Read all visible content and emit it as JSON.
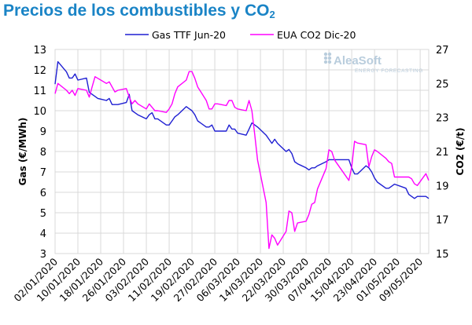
{
  "page": {
    "title": "Precios de los combustibles y CO",
    "title_sub": "2"
  },
  "watermark": {
    "brand": "AleaSoft",
    "tagline": "ENERGY FORECASTING"
  },
  "chart_data": {
    "type": "line",
    "title": "Precios de los combustibles y CO2",
    "x": [
      "02/01/2020",
      "03/01/2020",
      "06/01/2020",
      "07/01/2020",
      "08/01/2020",
      "09/01/2020",
      "10/01/2020",
      "13/01/2020",
      "14/01/2020",
      "15/01/2020",
      "16/01/2020",
      "17/01/2020",
      "20/01/2020",
      "21/01/2020",
      "22/01/2020",
      "23/01/2020",
      "24/01/2020",
      "27/01/2020",
      "28/01/2020",
      "29/01/2020",
      "30/01/2020",
      "31/01/2020",
      "03/02/2020",
      "04/02/2020",
      "05/02/2020",
      "06/02/2020",
      "07/02/2020",
      "10/02/2020",
      "11/02/2020",
      "12/02/2020",
      "13/02/2020",
      "14/02/2020",
      "17/02/2020",
      "18/02/2020",
      "19/02/2020",
      "20/02/2020",
      "21/02/2020",
      "24/02/2020",
      "25/02/2020",
      "26/02/2020",
      "27/02/2020",
      "28/02/2020",
      "02/03/2020",
      "03/03/2020",
      "04/03/2020",
      "05/03/2020",
      "06/03/2020",
      "09/03/2020",
      "10/03/2020",
      "11/03/2020",
      "12/03/2020",
      "13/03/2020",
      "16/03/2020",
      "17/03/2020",
      "18/03/2020",
      "19/03/2020",
      "20/03/2020",
      "23/03/2020",
      "24/03/2020",
      "25/03/2020",
      "26/03/2020",
      "27/03/2020",
      "30/03/2020",
      "31/03/2020",
      "01/04/2020",
      "02/04/2020",
      "03/04/2020",
      "06/04/2020",
      "07/04/2020",
      "08/04/2020",
      "09/04/2020",
      "14/04/2020",
      "15/04/2020",
      "16/04/2020",
      "17/04/2020",
      "20/04/2020",
      "21/04/2020",
      "22/04/2020",
      "23/04/2020",
      "24/04/2020",
      "27/04/2020",
      "28/04/2020",
      "29/04/2020",
      "30/04/2020",
      "04/05/2020",
      "05/05/2020",
      "06/05/2020",
      "07/05/2020",
      "08/05/2020",
      "11/05/2020",
      "12/05/2020"
    ],
    "x_start": "2020-01-02",
    "x_end": "2020-05-12",
    "x_ticks": [
      "02/01/2020",
      "10/01/2020",
      "18/01/2020",
      "26/01/2020",
      "03/02/2020",
      "11/02/2020",
      "19/02/2020",
      "27/02/2020",
      "06/03/2020",
      "14/03/2020",
      "22/03/2020",
      "30/03/2020",
      "07/04/2020",
      "15/04/2020",
      "23/04/2020",
      "01/05/2020",
      "09/05/2020"
    ],
    "series": [
      {
        "name": "Gas TTF Jun-20",
        "axis": "left",
        "color": "#1f1fd2",
        "values": [
          11.3,
          12.4,
          11.9,
          11.6,
          11.6,
          11.8,
          11.5,
          11.6,
          10.9,
          10.8,
          10.7,
          10.6,
          10.5,
          10.6,
          10.3,
          10.3,
          10.3,
          10.4,
          10.8,
          10.0,
          9.9,
          9.8,
          9.6,
          9.8,
          9.9,
          9.6,
          9.6,
          9.3,
          9.3,
          9.5,
          9.7,
          9.8,
          10.2,
          10.1,
          10.0,
          9.8,
          9.5,
          9.2,
          9.2,
          9.3,
          9.0,
          9.0,
          9.0,
          9.3,
          9.1,
          9.1,
          8.9,
          8.8,
          9.1,
          9.4,
          9.3,
          9.2,
          8.8,
          8.6,
          8.4,
          8.6,
          8.4,
          8.0,
          8.1,
          7.9,
          7.5,
          7.4,
          7.2,
          7.1,
          7.2,
          7.2,
          7.3,
          7.5,
          7.6,
          7.6,
          7.6,
          7.6,
          7.2,
          6.9,
          6.9,
          7.3,
          7.2,
          7.0,
          6.7,
          6.5,
          6.2,
          6.2,
          6.3,
          6.4,
          6.2,
          5.9,
          5.8,
          5.7,
          5.8,
          5.8,
          5.7
        ]
      },
      {
        "name": "EUA CO2 Dic-20",
        "axis": "right",
        "color": "#ff00ff",
        "values": [
          24.4,
          25.0,
          24.6,
          24.4,
          24.6,
          24.3,
          24.7,
          24.6,
          24.2,
          24.8,
          25.4,
          25.3,
          25.0,
          25.1,
          24.8,
          24.5,
          24.6,
          24.7,
          24.2,
          23.8,
          24.0,
          23.8,
          23.5,
          23.8,
          23.6,
          23.4,
          23.4,
          23.3,
          23.5,
          23.8,
          24.4,
          24.8,
          25.2,
          25.7,
          25.7,
          25.3,
          24.8,
          24.0,
          23.5,
          23.5,
          23.8,
          23.8,
          23.7,
          24.0,
          24.0,
          23.6,
          23.5,
          23.4,
          24.0,
          23.4,
          22.0,
          20.5,
          18.0,
          15.3,
          16.1,
          15.9,
          15.5,
          16.3,
          17.5,
          17.4,
          16.3,
          16.8,
          16.9,
          17.3,
          17.9,
          18.0,
          18.8,
          20.0,
          21.1,
          21.0,
          20.5,
          19.3,
          20.1,
          21.6,
          21.5,
          21.4,
          20.1,
          20.7,
          21.1,
          21.0,
          20.6,
          20.4,
          20.3,
          19.5,
          19.5,
          19.5,
          19.4,
          19.1,
          19.0,
          19.7,
          19.3
        ]
      }
    ],
    "y_left": {
      "label": "Gas (€/MWh)",
      "ylim": [
        3,
        13
      ],
      "ticks": [
        "3",
        "4",
        "5",
        "6",
        "7",
        "8",
        "9",
        "10",
        "11",
        "12",
        "13"
      ]
    },
    "y_right": {
      "label": "CO2 (€/t)",
      "ylim": [
        15,
        27
      ],
      "ticks": [
        "15",
        "17",
        "19",
        "21",
        "23",
        "25",
        "27"
      ]
    },
    "grid": true,
    "legend_position": "top"
  }
}
